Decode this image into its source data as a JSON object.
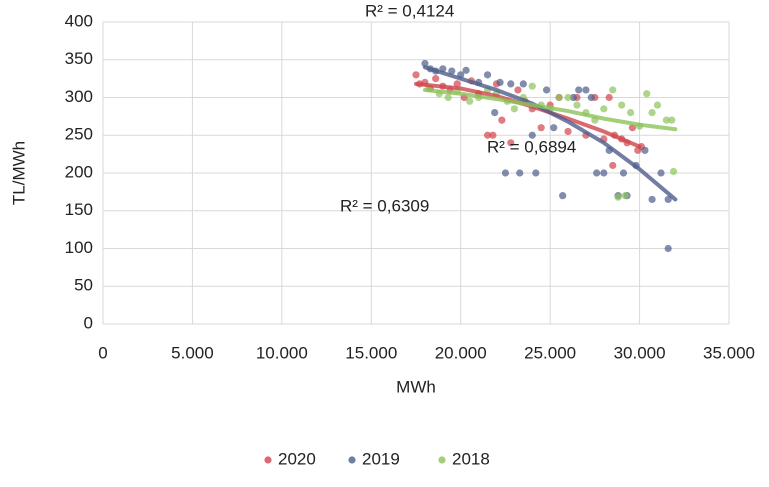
{
  "chart_data": {
    "type": "scatter",
    "x_label": "MWh",
    "y_label": "TL/MWh",
    "annotations": [
      "R² = 0,4124",
      "R² = 0,6894",
      "R² = 0,6309"
    ],
    "xlim": [
      0,
      35000
    ],
    "xticks": [
      0,
      {
        "value": 5000,
        "label": "5.000"
      },
      {
        "value": 10000,
        "label": "10.000"
      },
      {
        "value": 15000,
        "label": "15.000"
      },
      {
        "value": 20000,
        "label": "20.000"
      },
      {
        "value": 25000,
        "label": "25.000"
      },
      {
        "value": 30000,
        "label": "30.000"
      },
      {
        "value": 35000,
        "label": "35.000"
      }
    ],
    "ylim": [
      0,
      400
    ],
    "yticks": [
      0,
      50,
      100,
      150,
      200,
      250,
      300,
      350,
      400
    ],
    "grid": true,
    "legend": "bottom",
    "series": [
      {
        "name": "2020",
        "color": "#d0454c",
        "x": [
          17500,
          17700,
          18000,
          18300,
          18600,
          19000,
          19400,
          19800,
          20200,
          20600,
          21000,
          21500,
          21800,
          22000,
          22300,
          22800,
          23200,
          23600,
          24000,
          24500,
          25000,
          25500,
          26000,
          26500,
          27000,
          27500,
          28000,
          28300,
          28600,
          29000,
          29300,
          29600,
          29900,
          30100,
          28500
        ],
        "values": [
          330,
          318,
          320,
          312,
          325,
          315,
          310,
          318,
          300,
          322,
          305,
          250,
          250,
          318,
          270,
          240,
          310,
          295,
          285,
          260,
          290,
          300,
          255,
          300,
          250,
          300,
          245,
          300,
          250,
          245,
          240,
          260,
          230,
          235,
          210
        ],
        "trend": {
          "x": [
            17500,
            20000,
            22000,
            24000,
            26000,
            28000,
            30000
          ],
          "y": [
            318,
            312,
            302,
            288,
            272,
            255,
            235
          ]
        }
      },
      {
        "name": "2019",
        "color": "#4d5d8c",
        "x": [
          18000,
          18300,
          18600,
          19000,
          19500,
          20000,
          20300,
          21000,
          21500,
          21900,
          22200,
          22500,
          22800,
          23300,
          23500,
          24000,
          24200,
          24800,
          25200,
          25700,
          26300,
          26600,
          27000,
          27300,
          27600,
          28000,
          28300,
          28800,
          29100,
          29300,
          29800,
          30300,
          30700,
          31200,
          31600,
          31600
        ],
        "values": [
          345,
          338,
          335,
          338,
          335,
          330,
          336,
          320,
          330,
          280,
          320,
          200,
          318,
          200,
          318,
          250,
          200,
          310,
          260,
          170,
          300,
          310,
          310,
          300,
          200,
          200,
          230,
          170,
          200,
          170,
          210,
          230,
          165,
          200,
          165,
          100
        ],
        "trend": {
          "x": [
            18000,
            20000,
            22000,
            24000,
            26000,
            28000,
            30000,
            32000
          ],
          "y": [
            340,
            325,
            310,
            292,
            268,
            240,
            205,
            165
          ]
        }
      },
      {
        "name": "2018",
        "color": "#8cc35a",
        "x": [
          18200,
          18800,
          19300,
          19800,
          20500,
          21000,
          21500,
          22000,
          22600,
          23000,
          23500,
          24000,
          24500,
          25000,
          25500,
          26000,
          26500,
          27000,
          27500,
          28000,
          28500,
          28800,
          29000,
          29500,
          30000,
          30400,
          30700,
          31000,
          31500,
          31800,
          31900,
          29200
        ],
        "values": [
          312,
          305,
          300,
          308,
          295,
          300,
          310,
          305,
          295,
          285,
          300,
          315,
          290,
          285,
          300,
          300,
          290,
          280,
          270,
          285,
          310,
          168,
          290,
          280,
          262,
          305,
          280,
          290,
          270,
          270,
          202,
          170
        ],
        "trend": {
          "x": [
            18000,
            20000,
            22000,
            24000,
            26000,
            28000,
            30000,
            32000
          ],
          "y": [
            310,
            305,
            298,
            290,
            282,
            272,
            264,
            258
          ]
        }
      }
    ]
  }
}
